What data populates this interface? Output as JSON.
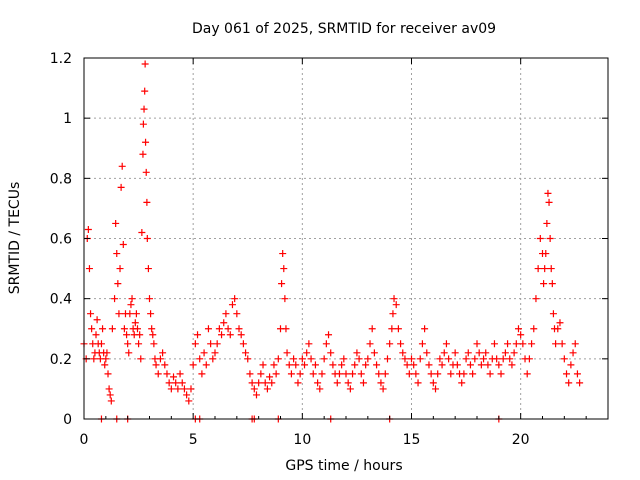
{
  "chart_data": {
    "type": "scatter",
    "title": "Day 061 of 2025, SRMTID for receiver av09",
    "xlabel": "GPS time / hours",
    "ylabel": "SRMTID / TECUs",
    "xlim": [
      0,
      24
    ],
    "ylim": [
      0,
      1.2
    ],
    "xticks": [
      0,
      5,
      10,
      15,
      20
    ],
    "xtick_labels": [
      "0",
      "5",
      "10",
      "15",
      "20"
    ],
    "yticks": [
      0,
      0.2,
      0.4,
      0.6,
      0.8,
      1.0,
      1.2
    ],
    "ytick_labels": [
      "0",
      "0.2",
      "0.4",
      "0.6",
      "0.8",
      "1",
      "1.2"
    ],
    "grid": true,
    "marker": "plus",
    "series_color": "#ff0000",
    "series": [
      {
        "name": "SRMTID",
        "x": [
          0.0,
          0.1,
          0.15,
          0.2,
          0.25,
          0.3,
          0.35,
          0.4,
          0.45,
          0.5,
          0.55,
          0.6,
          0.65,
          0.7,
          0.75,
          0.8,
          0.85,
          0.9,
          0.95,
          1.0,
          1.05,
          1.1,
          1.15,
          1.2,
          1.25,
          1.3,
          1.4,
          1.45,
          1.5,
          1.55,
          1.6,
          1.65,
          1.7,
          1.75,
          1.8,
          1.85,
          1.9,
          1.95,
          2.0,
          2.05,
          2.1,
          2.15,
          2.2,
          2.25,
          2.3,
          2.35,
          2.4,
          2.45,
          2.5,
          2.55,
          2.6,
          2.65,
          2.7,
          2.72,
          2.75,
          2.78,
          2.8,
          2.82,
          2.85,
          2.88,
          2.9,
          2.95,
          3.0,
          3.05,
          3.1,
          3.15,
          3.2,
          3.25,
          3.3,
          3.4,
          3.5,
          3.6,
          3.7,
          3.8,
          3.9,
          4.0,
          4.1,
          4.2,
          4.3,
          4.4,
          4.5,
          4.6,
          4.7,
          4.8,
          4.9,
          5.0,
          5.1,
          5.2,
          5.3,
          5.4,
          5.5,
          5.6,
          5.7,
          5.8,
          5.9,
          6.0,
          6.1,
          6.2,
          6.3,
          6.4,
          6.5,
          6.6,
          6.7,
          6.8,
          6.9,
          7.0,
          7.1,
          7.2,
          7.3,
          7.4,
          7.5,
          7.6,
          7.7,
          7.8,
          7.9,
          8.0,
          8.1,
          8.2,
          8.3,
          8.4,
          8.5,
          8.6,
          8.7,
          8.8,
          8.9,
          9.0,
          9.05,
          9.1,
          9.15,
          9.2,
          9.25,
          9.3,
          9.4,
          9.5,
          9.6,
          9.7,
          9.8,
          9.9,
          10.0,
          10.1,
          10.2,
          10.3,
          10.4,
          10.5,
          10.6,
          10.7,
          10.8,
          10.9,
          11.0,
          11.1,
          11.2,
          11.3,
          11.4,
          11.5,
          11.6,
          11.7,
          11.8,
          11.9,
          12.0,
          12.1,
          12.2,
          12.3,
          12.4,
          12.5,
          12.6,
          12.7,
          12.8,
          12.9,
          13.0,
          13.1,
          13.2,
          13.3,
          13.4,
          13.5,
          13.6,
          13.7,
          13.8,
          13.9,
          14.0,
          14.1,
          14.15,
          14.2,
          14.3,
          14.4,
          14.5,
          14.6,
          14.7,
          14.8,
          14.9,
          15.0,
          15.1,
          15.2,
          15.3,
          15.4,
          15.5,
          15.6,
          15.7,
          15.8,
          15.9,
          16.0,
          16.1,
          16.2,
          16.3,
          16.4,
          16.5,
          16.6,
          16.7,
          16.8,
          16.9,
          17.0,
          17.1,
          17.2,
          17.3,
          17.4,
          17.5,
          17.6,
          17.7,
          17.8,
          17.9,
          18.0,
          18.1,
          18.2,
          18.3,
          18.4,
          18.5,
          18.6,
          18.7,
          18.8,
          18.9,
          19.0,
          19.1,
          19.2,
          19.3,
          19.4,
          19.5,
          19.6,
          19.7,
          19.8,
          19.9,
          20.0,
          20.1,
          20.2,
          20.3,
          20.4,
          20.5,
          20.6,
          20.7,
          20.8,
          20.9,
          21.0,
          21.05,
          21.1,
          21.15,
          21.2,
          21.25,
          21.3,
          21.35,
          21.4,
          21.45,
          21.5,
          21.55,
          21.6,
          21.7,
          21.8,
          21.9,
          22.0,
          22.1,
          22.2,
          22.3,
          22.4,
          22.5,
          22.6,
          22.7,
          0.8,
          1.5,
          2.0,
          5.1,
          5.3,
          7.7,
          7.8,
          8.9,
          11.3,
          14.0,
          19.0
        ],
        "y": [
          0.25,
          0.2,
          0.6,
          0.63,
          0.5,
          0.35,
          0.3,
          0.25,
          0.2,
          0.22,
          0.28,
          0.33,
          0.25,
          0.22,
          0.2,
          0.25,
          0.3,
          0.22,
          0.18,
          0.2,
          0.22,
          0.15,
          0.1,
          0.08,
          0.06,
          0.3,
          0.4,
          0.65,
          0.55,
          0.45,
          0.35,
          0.5,
          0.77,
          0.84,
          0.58,
          0.3,
          0.35,
          0.28,
          0.25,
          0.22,
          0.35,
          0.38,
          0.4,
          0.3,
          0.28,
          0.32,
          0.35,
          0.3,
          0.25,
          0.28,
          0.2,
          0.62,
          0.88,
          0.98,
          1.03,
          1.09,
          1.18,
          0.92,
          0.82,
          0.72,
          0.6,
          0.5,
          0.4,
          0.35,
          0.3,
          0.28,
          0.25,
          0.2,
          0.18,
          0.15,
          0.2,
          0.22,
          0.18,
          0.15,
          0.12,
          0.1,
          0.14,
          0.12,
          0.1,
          0.15,
          0.12,
          0.1,
          0.08,
          0.06,
          0.1,
          0.18,
          0.25,
          0.28,
          0.2,
          0.15,
          0.22,
          0.18,
          0.3,
          0.25,
          0.2,
          0.22,
          0.25,
          0.3,
          0.28,
          0.32,
          0.35,
          0.3,
          0.28,
          0.38,
          0.4,
          0.35,
          0.3,
          0.28,
          0.25,
          0.22,
          0.2,
          0.15,
          0.12,
          0.1,
          0.08,
          0.12,
          0.15,
          0.18,
          0.12,
          0.1,
          0.14,
          0.12,
          0.18,
          0.15,
          0.2,
          0.3,
          0.45,
          0.55,
          0.5,
          0.4,
          0.3,
          0.22,
          0.18,
          0.15,
          0.2,
          0.18,
          0.12,
          0.15,
          0.2,
          0.18,
          0.22,
          0.25,
          0.2,
          0.15,
          0.18,
          0.12,
          0.1,
          0.15,
          0.2,
          0.25,
          0.28,
          0.22,
          0.18,
          0.15,
          0.12,
          0.15,
          0.18,
          0.2,
          0.15,
          0.12,
          0.1,
          0.15,
          0.18,
          0.22,
          0.2,
          0.15,
          0.12,
          0.18,
          0.2,
          0.25,
          0.3,
          0.22,
          0.18,
          0.15,
          0.12,
          0.1,
          0.15,
          0.2,
          0.25,
          0.3,
          0.35,
          0.4,
          0.38,
          0.3,
          0.25,
          0.22,
          0.2,
          0.18,
          0.15,
          0.2,
          0.18,
          0.15,
          0.12,
          0.2,
          0.25,
          0.3,
          0.22,
          0.18,
          0.15,
          0.12,
          0.1,
          0.15,
          0.2,
          0.18,
          0.22,
          0.25,
          0.2,
          0.15,
          0.18,
          0.22,
          0.18,
          0.15,
          0.12,
          0.15,
          0.2,
          0.22,
          0.18,
          0.15,
          0.2,
          0.25,
          0.22,
          0.18,
          0.2,
          0.22,
          0.18,
          0.15,
          0.2,
          0.25,
          0.2,
          0.18,
          0.15,
          0.2,
          0.22,
          0.25,
          0.2,
          0.18,
          0.22,
          0.25,
          0.3,
          0.28,
          0.25,
          0.2,
          0.15,
          0.2,
          0.25,
          0.3,
          0.4,
          0.5,
          0.6,
          0.55,
          0.45,
          0.5,
          0.55,
          0.65,
          0.75,
          0.72,
          0.6,
          0.5,
          0.45,
          0.35,
          0.3,
          0.25,
          0.3,
          0.32,
          0.25,
          0.2,
          0.15,
          0.12,
          0.18,
          0.22,
          0.25,
          0.15,
          0.12,
          0,
          0,
          0,
          0,
          0,
          0,
          0,
          0,
          0,
          0,
          0
        ]
      }
    ]
  }
}
